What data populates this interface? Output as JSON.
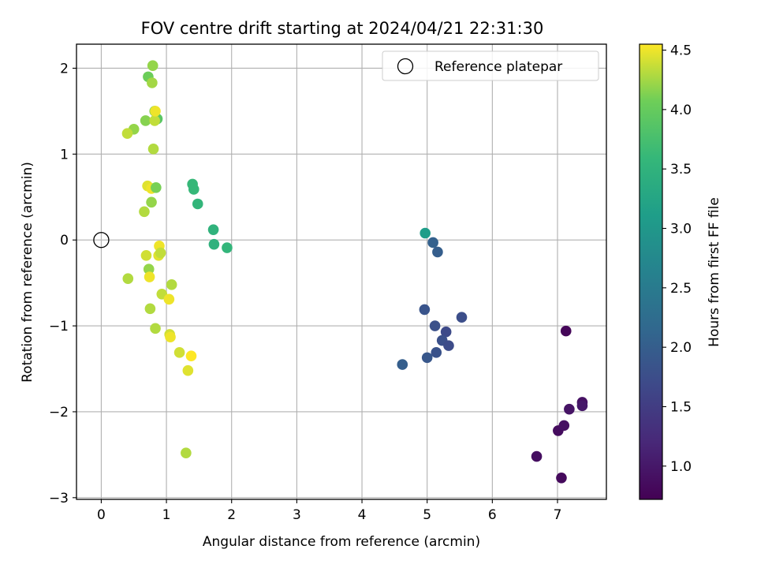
{
  "chart_data": {
    "type": "scatter",
    "title": "FOV centre drift starting at 2024/04/21 22:31:30",
    "xlabel": "Angular distance from reference (arcmin)",
    "ylabel": "Rotation from reference (arcmin)",
    "xlim": [
      -0.38,
      7.75
    ],
    "ylim": [
      -3.02,
      2.28
    ],
    "xticks": [
      0,
      1,
      2,
      3,
      4,
      5,
      6,
      7
    ],
    "yticks": [
      -3,
      -2,
      -1,
      0,
      1,
      2
    ],
    "grid": true,
    "legend": {
      "placement": "top-right",
      "entries": [
        "Reference platepar"
      ]
    },
    "reference_point": {
      "x": 0,
      "y": 0
    },
    "colorbar": {
      "label": "Hours from first FF file",
      "colormap": "viridis",
      "range": [
        0.72,
        4.55
      ],
      "ticks": [
        1.0,
        1.5,
        2.0,
        2.5,
        3.0,
        3.5,
        4.0,
        4.5
      ],
      "tick_labels": [
        "1.0",
        "1.5",
        "2.0",
        "2.5",
        "3.0",
        "3.5",
        "4.0",
        "4.5"
      ]
    },
    "points": [
      {
        "x": 7.13,
        "y": -1.06,
        "c": 0.78
      },
      {
        "x": 7.38,
        "y": -1.89,
        "c": 0.92
      },
      {
        "x": 7.38,
        "y": -1.93,
        "c": 1.0
      },
      {
        "x": 7.18,
        "y": -1.97,
        "c": 0.95
      },
      {
        "x": 7.01,
        "y": -2.22,
        "c": 0.85
      },
      {
        "x": 7.1,
        "y": -2.16,
        "c": 0.9
      },
      {
        "x": 6.68,
        "y": -2.52,
        "c": 0.88
      },
      {
        "x": 7.06,
        "y": -2.77,
        "c": 0.83
      },
      {
        "x": 4.96,
        "y": -0.81,
        "c": 1.85
      },
      {
        "x": 5.53,
        "y": -0.9,
        "c": 1.75
      },
      {
        "x": 5.12,
        "y": -1.0,
        "c": 1.8
      },
      {
        "x": 5.29,
        "y": -1.07,
        "c": 1.7
      },
      {
        "x": 5.23,
        "y": -1.17,
        "c": 1.78
      },
      {
        "x": 5.33,
        "y": -1.23,
        "c": 1.72
      },
      {
        "x": 5.14,
        "y": -1.31,
        "c": 1.82
      },
      {
        "x": 5.0,
        "y": -1.37,
        "c": 1.9
      },
      {
        "x": 4.62,
        "y": -1.45,
        "c": 2.0
      },
      {
        "x": 5.09,
        "y": -0.03,
        "c": 2.05
      },
      {
        "x": 5.16,
        "y": -0.14,
        "c": 2.0
      },
      {
        "x": 4.97,
        "y": 0.08,
        "c": 3.1
      },
      {
        "x": 1.4,
        "y": 0.65,
        "c": 3.6
      },
      {
        "x": 1.42,
        "y": 0.59,
        "c": 3.6
      },
      {
        "x": 1.48,
        "y": 0.42,
        "c": 3.55
      },
      {
        "x": 1.72,
        "y": 0.12,
        "c": 3.5
      },
      {
        "x": 1.73,
        "y": -0.05,
        "c": 3.48
      },
      {
        "x": 1.93,
        "y": -0.09,
        "c": 3.55
      },
      {
        "x": 0.79,
        "y": 2.03,
        "c": 4.2
      },
      {
        "x": 0.72,
        "y": 1.9,
        "c": 4.05
      },
      {
        "x": 0.78,
        "y": 1.83,
        "c": 4.25
      },
      {
        "x": 0.82,
        "y": 1.5,
        "c": 4.1
      },
      {
        "x": 0.86,
        "y": 1.41,
        "c": 3.9
      },
      {
        "x": 0.68,
        "y": 1.39,
        "c": 4.15
      },
      {
        "x": 0.82,
        "y": 1.39,
        "c": 4.35
      },
      {
        "x": 0.83,
        "y": 1.5,
        "c": 4.5
      },
      {
        "x": 0.5,
        "y": 1.29,
        "c": 4.2
      },
      {
        "x": 0.4,
        "y": 1.24,
        "c": 4.35
      },
      {
        "x": 0.8,
        "y": 1.06,
        "c": 4.3
      },
      {
        "x": 0.71,
        "y": 0.63,
        "c": 4.45
      },
      {
        "x": 0.77,
        "y": 0.6,
        "c": 4.5
      },
      {
        "x": 0.84,
        "y": 0.61,
        "c": 4.1
      },
      {
        "x": 0.77,
        "y": 0.44,
        "c": 4.2
      },
      {
        "x": 0.66,
        "y": 0.33,
        "c": 4.3
      },
      {
        "x": 0.89,
        "y": -0.07,
        "c": 4.5
      },
      {
        "x": 0.69,
        "y": -0.18,
        "c": 4.4
      },
      {
        "x": 0.88,
        "y": -0.18,
        "c": 4.45
      },
      {
        "x": 0.91,
        "y": -0.15,
        "c": 4.35
      },
      {
        "x": 0.73,
        "y": -0.34,
        "c": 4.2
      },
      {
        "x": 0.74,
        "y": -0.43,
        "c": 4.5
      },
      {
        "x": 0.41,
        "y": -0.45,
        "c": 4.3
      },
      {
        "x": 1.08,
        "y": -0.52,
        "c": 4.3
      },
      {
        "x": 0.93,
        "y": -0.63,
        "c": 4.35
      },
      {
        "x": 1.04,
        "y": -0.69,
        "c": 4.5
      },
      {
        "x": 0.75,
        "y": -0.8,
        "c": 4.3
      },
      {
        "x": 0.83,
        "y": -1.03,
        "c": 4.3
      },
      {
        "x": 1.05,
        "y": -1.1,
        "c": 4.4
      },
      {
        "x": 1.06,
        "y": -1.13,
        "c": 4.5
      },
      {
        "x": 1.2,
        "y": -1.31,
        "c": 4.4
      },
      {
        "x": 1.38,
        "y": -1.35,
        "c": 4.55
      },
      {
        "x": 1.33,
        "y": -1.52,
        "c": 4.45
      },
      {
        "x": 1.3,
        "y": -2.48,
        "c": 4.3
      }
    ]
  }
}
